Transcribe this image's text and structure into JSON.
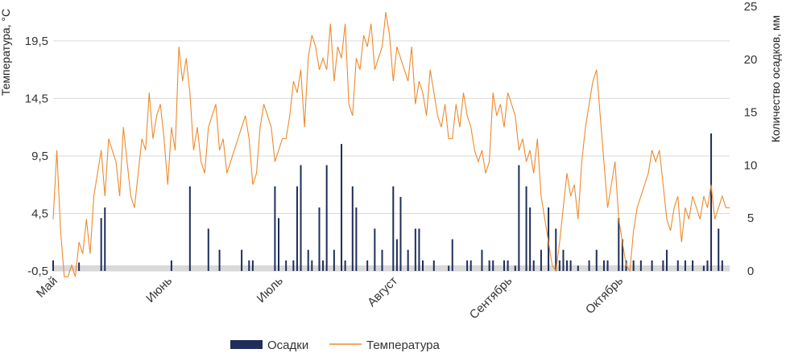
{
  "chart_data": {
    "type": "bar-line-combo",
    "y_left_label": "Температура, °C",
    "y_right_label": "Количество осадков, мм",
    "y_left_ticks": [
      "-0,5",
      "4,5",
      "9,5",
      "14,5",
      "19,5"
    ],
    "y_left_range": [
      -0.5,
      22.5
    ],
    "y_right_ticks": [
      "0",
      "5",
      "10",
      "15",
      "20",
      "25"
    ],
    "y_right_range": [
      0,
      25
    ],
    "x_range_days": [
      1,
      184
    ],
    "months": [
      {
        "label": "Май",
        "day": 1
      },
      {
        "label": "Июнь",
        "day": 32
      },
      {
        "label": "Июль",
        "day": 62
      },
      {
        "label": "Август",
        "day": 93
      },
      {
        "label": "Сентябрь",
        "day": 124
      },
      {
        "label": "Октябрь",
        "day": 154
      }
    ],
    "legend": {
      "precip_label": "Осадки",
      "temp_label": "Температура"
    },
    "colors": {
      "precip": "#1f2d5a",
      "temp": "#ee8a2c",
      "grid": "#d9d9d9",
      "baseline_band": "#d9d9d9"
    },
    "series": [
      {
        "name": "Температура",
        "axis": "left",
        "x": [
          1,
          2,
          3,
          4,
          5,
          6,
          7,
          8,
          9,
          10,
          11,
          12,
          13,
          14,
          15,
          16,
          17,
          18,
          19,
          20,
          21,
          22,
          23,
          24,
          25,
          26,
          27,
          28,
          29,
          30,
          31,
          32,
          33,
          34,
          35,
          36,
          37,
          38,
          39,
          40,
          41,
          42,
          43,
          44,
          45,
          46,
          47,
          48,
          49,
          50,
          51,
          52,
          53,
          54,
          55,
          56,
          57,
          58,
          59,
          60,
          61,
          62,
          63,
          64,
          65,
          66,
          67,
          68,
          69,
          70,
          71,
          72,
          73,
          74,
          75,
          76,
          77,
          78,
          79,
          80,
          81,
          82,
          83,
          84,
          85,
          86,
          87,
          88,
          89,
          90,
          91,
          92,
          93,
          94,
          95,
          96,
          97,
          98,
          99,
          100,
          101,
          102,
          103,
          104,
          105,
          106,
          107,
          108,
          109,
          110,
          111,
          112,
          113,
          114,
          115,
          116,
          117,
          118,
          119,
          120,
          121,
          122,
          123,
          124,
          125,
          126,
          127,
          128,
          129,
          130,
          131,
          132,
          133,
          134,
          135,
          136,
          137,
          138,
          139,
          140,
          141,
          142,
          143,
          144,
          145,
          146,
          147,
          148,
          149,
          150,
          151,
          152,
          153,
          154,
          155,
          156,
          157,
          158,
          159,
          160,
          161,
          162,
          163,
          164,
          165,
          166,
          167,
          168,
          169,
          170,
          171,
          172,
          173,
          174,
          175,
          176,
          177,
          178,
          179,
          180,
          181,
          182,
          183,
          184
        ],
        "values": [
          4,
          10,
          3,
          -1,
          -1,
          0,
          -1,
          2,
          1,
          4,
          1,
          6,
          8,
          10,
          6,
          11,
          10,
          9,
          6,
          12,
          9,
          6,
          5,
          8,
          11,
          10,
          15,
          11,
          13,
          14,
          11,
          7,
          12,
          10,
          19,
          16,
          18,
          15,
          10,
          12,
          9,
          8,
          12,
          13,
          14,
          10,
          11,
          8,
          9,
          10,
          11,
          12,
          13,
          11,
          7,
          8,
          12,
          14,
          13,
          12,
          9,
          10,
          11,
          11,
          13,
          16,
          15,
          17,
          12,
          18,
          20,
          19,
          17,
          18,
          17,
          21,
          16,
          19,
          18,
          21,
          14,
          13,
          18,
          17,
          20,
          19,
          21,
          17,
          18,
          19,
          22,
          20,
          16,
          19,
          18,
          17,
          16,
          19,
          14,
          16,
          15,
          13,
          17,
          15,
          13,
          12,
          14,
          11,
          11,
          14,
          12,
          15,
          13,
          12,
          10,
          9,
          10,
          8,
          9,
          15,
          13,
          14,
          12,
          15,
          14,
          13,
          10,
          11,
          9,
          10,
          8,
          11,
          6,
          4,
          2,
          0,
          -0.5,
          2,
          5,
          8,
          6,
          7,
          4,
          9,
          12,
          14,
          16,
          17,
          13,
          9,
          5,
          7,
          9,
          4,
          2,
          0,
          -0.5,
          3,
          5,
          6,
          7,
          8,
          10,
          9,
          10,
          7,
          4,
          3,
          5,
          6,
          2,
          5,
          4,
          6,
          5,
          4,
          6,
          5,
          7,
          4,
          5,
          6,
          5,
          5
        ]
      },
      {
        "name": "Осадки",
        "axis": "right",
        "x": [
          1,
          8,
          14,
          15,
          33,
          38,
          43,
          46,
          52,
          54,
          55,
          61,
          62,
          64,
          66,
          67,
          68,
          70,
          71,
          73,
          74,
          75,
          77,
          79,
          80,
          82,
          83,
          86,
          88,
          90,
          93,
          94,
          95,
          97,
          99,
          100,
          101,
          104,
          108,
          109,
          113,
          114,
          117,
          119,
          120,
          123,
          124,
          126,
          127,
          129,
          130,
          131,
          133,
          135,
          137,
          138,
          139,
          140,
          141,
          143,
          146,
          148,
          150,
          151,
          154,
          155,
          156,
          158,
          160,
          163,
          166,
          167,
          170,
          172,
          174,
          177,
          178,
          179,
          181,
          182
        ],
        "values": [
          1,
          0.8,
          5,
          6,
          1,
          8,
          4,
          2,
          2,
          1,
          1,
          8,
          5,
          1,
          1,
          8,
          10,
          2,
          1,
          6,
          1,
          10,
          2,
          12,
          1,
          8,
          6,
          1,
          4,
          2,
          8,
          3,
          7,
          2,
          4,
          4,
          1,
          1,
          0.5,
          3,
          1,
          1,
          2,
          1,
          1,
          1,
          1,
          0.5,
          10,
          8,
          6,
          1,
          2,
          6,
          4,
          1,
          2,
          1,
          1,
          0.5,
          1,
          2,
          1,
          1,
          5,
          3,
          1,
          1,
          1,
          1,
          1,
          2,
          1,
          1,
          1,
          0.5,
          1,
          13,
          4,
          1
        ]
      }
    ]
  }
}
